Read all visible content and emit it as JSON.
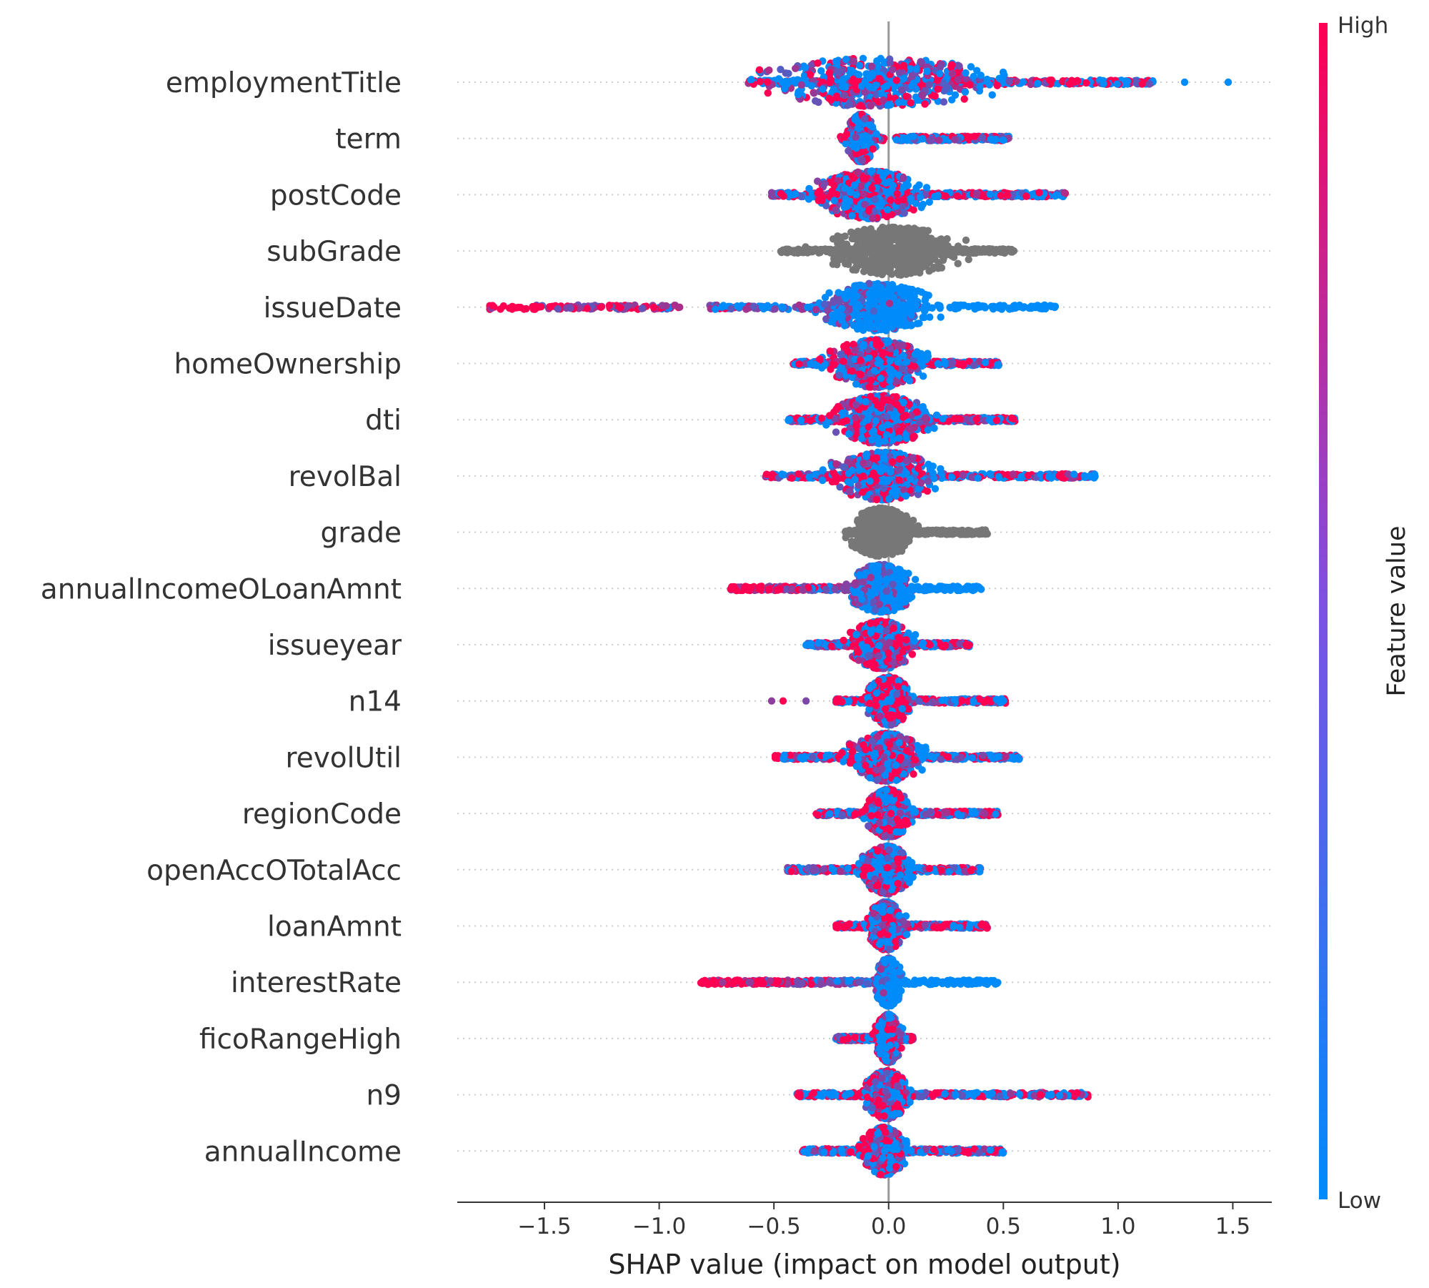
{
  "chart_data": {
    "type": "scatter",
    "subtype": "beeswarm",
    "title": "",
    "xlabel": "SHAP value (impact on model output)",
    "ylabel": "",
    "xlim": [
      -1.88,
      1.67
    ],
    "xticks": [
      -1.5,
      -1.0,
      -0.5,
      0.0,
      0.5,
      1.0,
      1.5
    ],
    "xtick_labels": [
      "−1.5",
      "−1.0",
      "−0.5",
      "0.0",
      "0.5",
      "1.0",
      "1.5"
    ],
    "grid": false,
    "colorbar": {
      "title": "Feature value",
      "high_label": "High",
      "low_label": "Low",
      "high_color": "#ff0052",
      "low_color": "#008bfb",
      "placement": "right"
    },
    "colors": {
      "high": "#ff0052",
      "low": "#008bfb",
      "categorical": "#777777",
      "zero_line": "#999999",
      "row_guide": "#cccccc"
    },
    "features": [
      {
        "name": "employmentTitle",
        "x_min": -0.62,
        "x_max": 1.16,
        "outliers": [
          1.29,
          1.48
        ],
        "core_center": -0.05,
        "core_spread": 0.45,
        "color_mode": "mixed"
      },
      {
        "name": "term",
        "x_min": -0.21,
        "x_max": 0.53,
        "outliers": [],
        "core_center": -0.12,
        "core_spread": 0.05,
        "color_mode": "mixed",
        "gap": [
          -0.02,
          0.03
        ]
      },
      {
        "name": "postCode",
        "x_min": -0.51,
        "x_max": 0.77,
        "outliers": [],
        "core_center": -0.08,
        "core_spread": 0.2,
        "color_mode": "mixed"
      },
      {
        "name": "subGrade",
        "x_min": -0.47,
        "x_max": 0.55,
        "outliers": [],
        "core_center": 0.02,
        "core_spread": 0.25,
        "color_mode": "categorical"
      },
      {
        "name": "issueDate",
        "x_min": -1.74,
        "x_max": 0.74,
        "outliers": [],
        "core_center": -0.05,
        "core_spread": 0.2,
        "color_mode": "high_left",
        "gap": [
          -0.9,
          -0.78
        ]
      },
      {
        "name": "homeOwnership",
        "x_min": -0.42,
        "x_max": 0.48,
        "outliers": [],
        "core_center": -0.05,
        "core_spread": 0.18,
        "color_mode": "mixed"
      },
      {
        "name": "dti",
        "x_min": -0.44,
        "x_max": 0.55,
        "outliers": [],
        "core_center": -0.03,
        "core_spread": 0.18,
        "color_mode": "mixed"
      },
      {
        "name": "revolBal",
        "x_min": -0.54,
        "x_max": 0.9,
        "outliers": [],
        "core_center": -0.02,
        "core_spread": 0.2,
        "color_mode": "mixed"
      },
      {
        "name": "grade",
        "x_min": -0.19,
        "x_max": 0.43,
        "outliers": [],
        "core_center": -0.03,
        "core_spread": 0.12,
        "color_mode": "categorical"
      },
      {
        "name": "annualIncomeOLoanAmnt",
        "x_min": -0.69,
        "x_max": 0.41,
        "outliers": [],
        "core_center": -0.03,
        "core_spread": 0.12,
        "color_mode": "high_left"
      },
      {
        "name": "issueyear",
        "x_min": -0.36,
        "x_max": 0.36,
        "outliers": [],
        "core_center": -0.03,
        "core_spread": 0.12,
        "color_mode": "mixed"
      },
      {
        "name": "n14",
        "x_min": -0.23,
        "x_max": 0.51,
        "outliers": [
          -0.51,
          -0.46,
          -0.36
        ],
        "core_center": 0.0,
        "core_spread": 0.08,
        "color_mode": "mixed"
      },
      {
        "name": "revolUtil",
        "x_min": -0.5,
        "x_max": 0.57,
        "outliers": [],
        "core_center": -0.01,
        "core_spread": 0.14,
        "color_mode": "mixed"
      },
      {
        "name": "regionCode",
        "x_min": -0.32,
        "x_max": 0.48,
        "outliers": [],
        "core_center": 0.0,
        "core_spread": 0.08,
        "color_mode": "mixed"
      },
      {
        "name": "openAccOTotalAcc",
        "x_min": -0.44,
        "x_max": 0.4,
        "outliers": [],
        "core_center": -0.01,
        "core_spread": 0.09,
        "color_mode": "mixed"
      },
      {
        "name": "loanAmnt",
        "x_min": -0.23,
        "x_max": 0.43,
        "outliers": [],
        "core_center": -0.01,
        "core_spread": 0.07,
        "color_mode": "mixed"
      },
      {
        "name": "interestRate",
        "x_min": -0.82,
        "x_max": 0.48,
        "outliers": [],
        "core_center": 0.0,
        "core_spread": 0.05,
        "color_mode": "high_left"
      },
      {
        "name": "ficoRangeHigh",
        "x_min": -0.23,
        "x_max": 0.11,
        "outliers": [],
        "core_center": 0.0,
        "core_spread": 0.05,
        "color_mode": "mixed"
      },
      {
        "name": "n9",
        "x_min": -0.4,
        "x_max": 0.87,
        "outliers": [],
        "core_center": -0.01,
        "core_spread": 0.08,
        "color_mode": "mixed"
      },
      {
        "name": "annualIncome",
        "x_min": -0.38,
        "x_max": 0.5,
        "outliers": [],
        "core_center": -0.02,
        "core_spread": 0.08,
        "color_mode": "mixed"
      }
    ]
  }
}
